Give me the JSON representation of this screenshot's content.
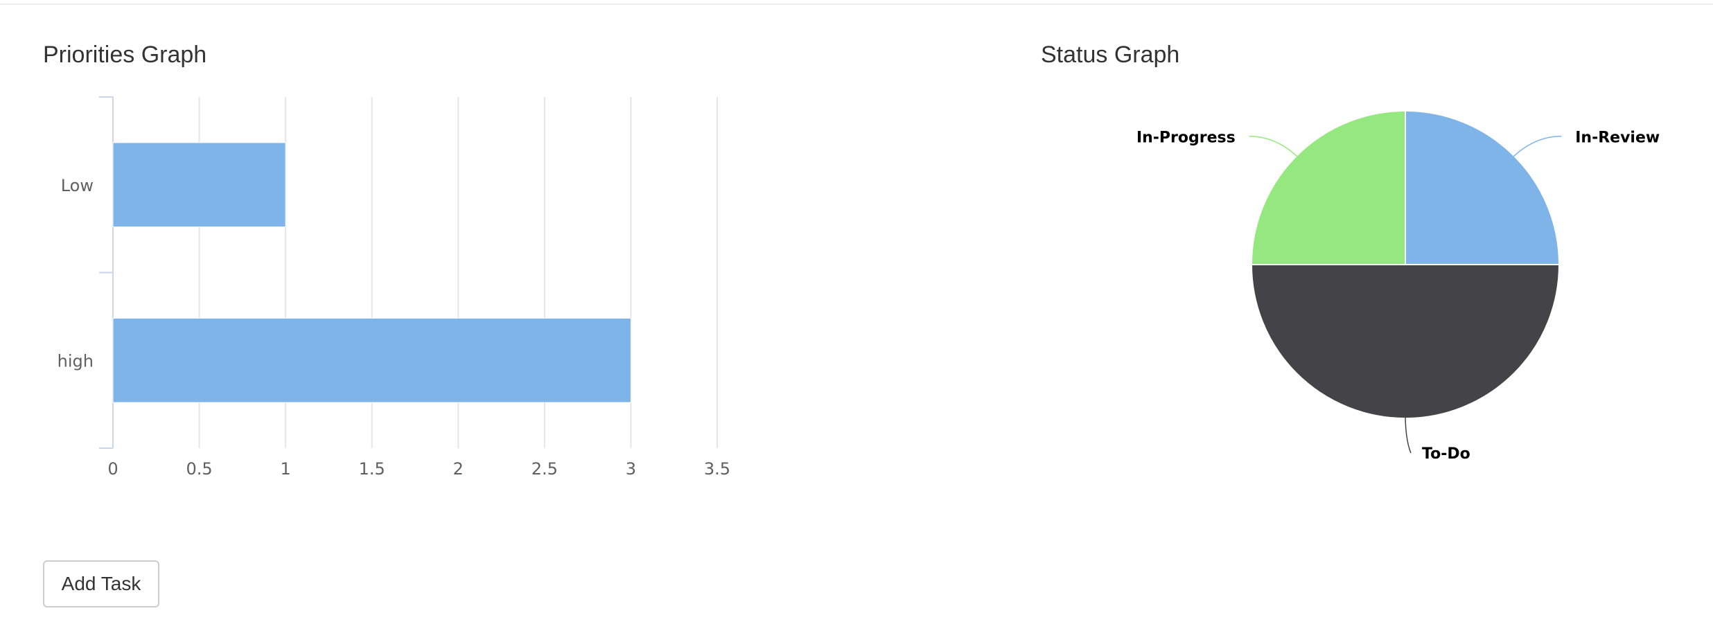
{
  "sections": {
    "priorities_title": "Priorities Graph",
    "status_title": "Status Graph"
  },
  "actions": {
    "add_task_label": "Add Task"
  },
  "chart_data": [
    {
      "type": "bar",
      "orientation": "horizontal",
      "categories": [
        "Low",
        "high"
      ],
      "values": [
        1,
        3
      ],
      "xlim": [
        0,
        3.5
      ],
      "x_ticks": [
        "0",
        "0.5",
        "1",
        "1.5",
        "2",
        "2.5",
        "3",
        "3.5"
      ],
      "grid": true,
      "color": "#7fb4e8"
    },
    {
      "type": "pie",
      "slices": [
        {
          "label": "In-Review",
          "value": 1,
          "color": "#7fb4e8"
        },
        {
          "label": "To-Do",
          "value": 2,
          "color": "#434348"
        },
        {
          "label": "In-Progress",
          "value": 1,
          "color": "#95e87f"
        }
      ]
    }
  ]
}
